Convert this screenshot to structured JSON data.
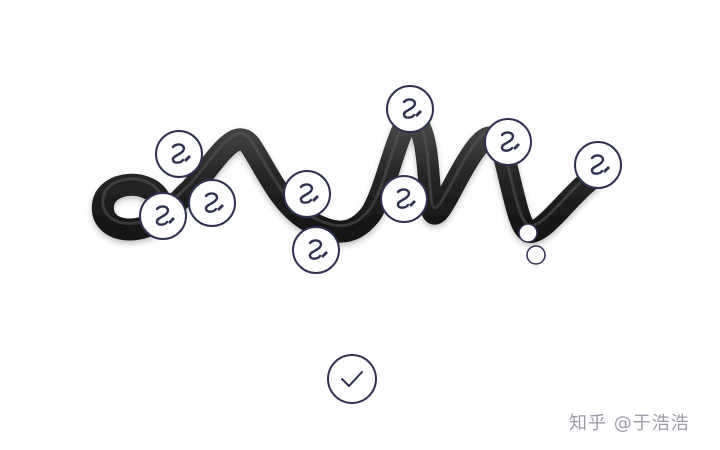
{
  "canvas": {
    "tube_color": "#262626",
    "handle_border_color": "#2f3152",
    "handle_icon": "curve-edit-icon",
    "endpoint_icon": "endpoint-dot-icon"
  },
  "confirm": {
    "icon": "checkmark-icon"
  },
  "watermark": {
    "text": "知乎 @于浩浩"
  }
}
